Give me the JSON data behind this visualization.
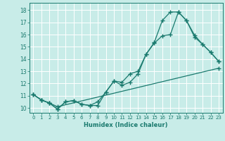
{
  "xlabel": "Humidex (Indice chaleur)",
  "bg_color": "#c8ece8",
  "grid_color": "#ffffff",
  "line_color": "#1a7a6e",
  "xlim": [
    -0.5,
    23.5
  ],
  "ylim": [
    9.6,
    18.6
  ],
  "yticks": [
    10,
    11,
    12,
    13,
    14,
    15,
    16,
    17,
    18
  ],
  "xticks": [
    0,
    1,
    2,
    3,
    4,
    5,
    6,
    7,
    8,
    9,
    10,
    11,
    12,
    13,
    14,
    15,
    16,
    17,
    18,
    19,
    20,
    21,
    22,
    23
  ],
  "curve_peak_x": [
    0,
    1,
    2,
    3,
    4,
    5,
    6,
    7,
    8,
    9,
    10,
    11,
    12,
    13,
    14,
    15,
    16,
    17,
    18,
    19,
    20,
    21,
    22,
    23
  ],
  "curve_peak_y": [
    11.1,
    10.65,
    10.4,
    9.9,
    10.5,
    10.6,
    10.3,
    10.2,
    10.2,
    11.3,
    12.2,
    11.85,
    12.1,
    12.8,
    14.4,
    15.35,
    17.15,
    17.85,
    17.85,
    17.15,
    15.8,
    15.2,
    14.55,
    13.8
  ],
  "curve_mid_x": [
    0,
    1,
    2,
    3,
    4,
    5,
    6,
    7,
    8,
    9,
    10,
    11,
    12,
    13,
    14,
    15,
    16,
    17,
    18,
    19,
    20,
    21,
    22,
    23
  ],
  "curve_mid_y": [
    11.1,
    10.65,
    10.4,
    9.9,
    10.5,
    10.6,
    10.3,
    10.2,
    10.5,
    11.3,
    12.2,
    12.1,
    12.8,
    13.0,
    14.4,
    15.3,
    15.9,
    16.0,
    17.85,
    17.15,
    15.95,
    15.2,
    14.55,
    13.8
  ],
  "curve_diag_x": [
    0,
    1,
    2,
    3,
    23
  ],
  "curve_diag_y": [
    11.1,
    10.65,
    10.4,
    10.1,
    13.25
  ]
}
